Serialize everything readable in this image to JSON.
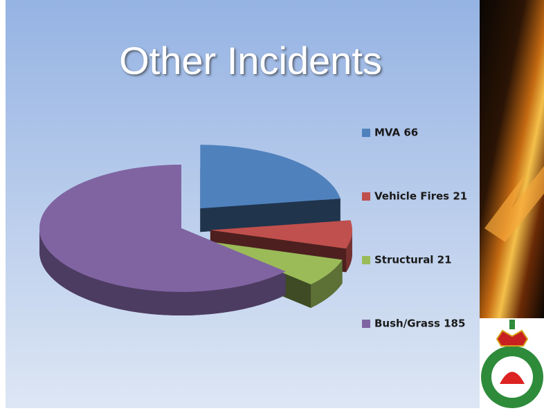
{
  "chart_data": {
    "type": "pie",
    "title": "Other Incidents",
    "categories": [
      "MVA 66",
      "Vehicle Fires 21",
      "Structural 21",
      "Bush/Grass 185"
    ],
    "values": [
      66,
      21,
      21,
      185
    ],
    "colors": [
      "#4f81bd",
      "#c0504d",
      "#9bbb59",
      "#8064a2"
    ]
  }
}
